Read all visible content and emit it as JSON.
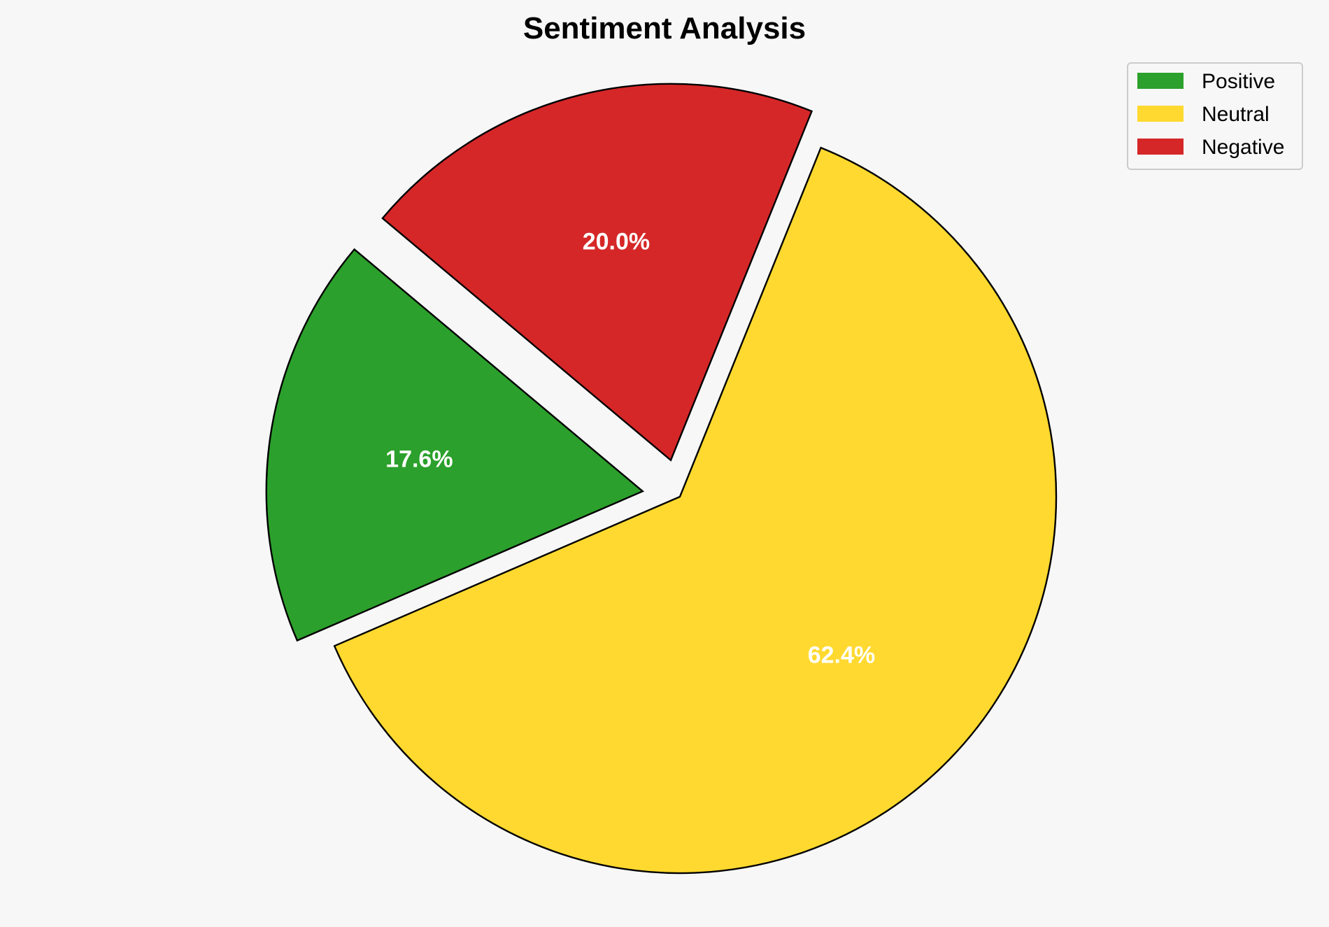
{
  "chart_data": {
    "type": "pie",
    "title": "Sentiment Analysis",
    "categories": [
      "Positive",
      "Neutral",
      "Negative"
    ],
    "values": [
      17.6,
      62.4,
      20.0
    ],
    "labels": [
      "17.6%",
      "62.4%",
      "20.0%"
    ],
    "colors": [
      "#2ca02c",
      "#ffd92f",
      "#d62728"
    ],
    "explode": [
      0.1,
      0,
      0.1
    ],
    "start_angle": 140,
    "counterclockwise": true,
    "legend_position": "top-right",
    "edge_color": "#000000",
    "background": "#f7f7f7"
  }
}
